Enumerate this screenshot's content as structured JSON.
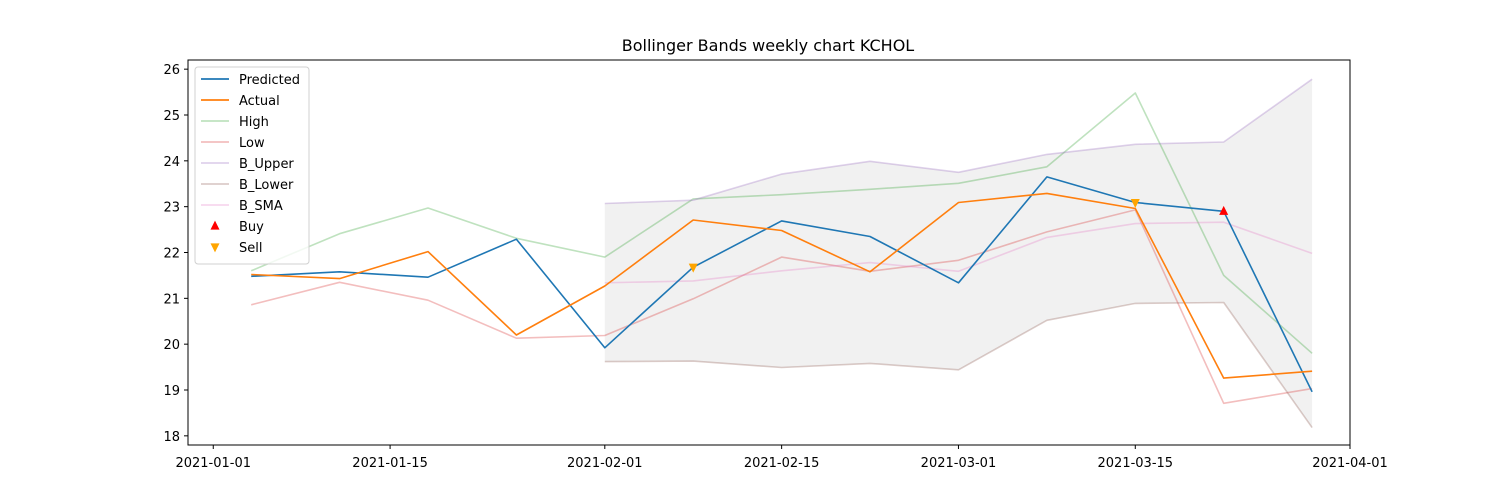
{
  "chart_data": {
    "type": "line",
    "title": "Bollinger Bands weekly chart KCHOL",
    "xlabel": "",
    "ylabel": "",
    "x_is_date": true,
    "xlim": [
      "2020-12-30",
      "2021-04-01"
    ],
    "ylim": [
      17.8,
      26.2
    ],
    "xticks": [
      "2021-01-01",
      "2021-01-15",
      "2021-02-01",
      "2021-02-15",
      "2021-03-01",
      "2021-03-15",
      "2021-04-01"
    ],
    "yticks": [
      18,
      19,
      20,
      21,
      22,
      23,
      24,
      25,
      26
    ],
    "grid": false,
    "legend_position": "top-left",
    "band_fill": {
      "between": [
        "B_Upper",
        "B_Lower"
      ],
      "color": "#cccccc",
      "opacity": 0.28
    },
    "series": [
      {
        "name": "Predicted",
        "color": "#1f77b4",
        "opacity": 1.0,
        "kind": "line",
        "x": [
          "2021-01-04",
          "2021-01-11",
          "2021-01-18",
          "2021-01-25",
          "2021-02-01",
          "2021-02-08",
          "2021-02-15",
          "2021-02-22",
          "2021-03-01",
          "2021-03-08",
          "2021-03-15",
          "2021-03-22",
          "2021-03-29"
        ],
        "values": [
          21.48,
          21.58,
          21.46,
          22.29,
          19.92,
          21.68,
          22.69,
          22.35,
          21.34,
          23.65,
          23.09,
          22.9,
          18.96
        ]
      },
      {
        "name": "Actual",
        "color": "#ff7f0e",
        "opacity": 1.0,
        "kind": "line",
        "x": [
          "2021-01-04",
          "2021-01-11",
          "2021-01-18",
          "2021-01-25",
          "2021-02-01",
          "2021-02-08",
          "2021-02-15",
          "2021-02-22",
          "2021-03-01",
          "2021-03-08",
          "2021-03-15",
          "2021-03-22",
          "2021-03-29"
        ],
        "values": [
          21.52,
          21.43,
          22.02,
          20.2,
          21.27,
          22.71,
          22.48,
          21.58,
          23.09,
          23.29,
          22.96,
          19.26,
          19.41
        ]
      },
      {
        "name": "High",
        "color": "#2ca02c",
        "opacity": 0.3,
        "kind": "line",
        "x": [
          "2021-01-04",
          "2021-01-11",
          "2021-01-18",
          "2021-01-25",
          "2021-02-01",
          "2021-02-08",
          "2021-02-15",
          "2021-02-22",
          "2021-03-01",
          "2021-03-08",
          "2021-03-15",
          "2021-03-22",
          "2021-03-29"
        ],
        "values": [
          21.6,
          22.41,
          22.97,
          22.31,
          21.9,
          23.17,
          23.26,
          23.38,
          23.51,
          23.87,
          25.48,
          21.5,
          19.8
        ]
      },
      {
        "name": "Low",
        "color": "#d62728",
        "opacity": 0.3,
        "kind": "line",
        "x": [
          "2021-01-04",
          "2021-01-11",
          "2021-01-18",
          "2021-01-25",
          "2021-02-01",
          "2021-02-08",
          "2021-02-15",
          "2021-02-22",
          "2021-03-01",
          "2021-03-08",
          "2021-03-15",
          "2021-03-22",
          "2021-03-29"
        ],
        "values": [
          20.86,
          21.35,
          20.96,
          20.13,
          20.19,
          20.99,
          21.9,
          21.59,
          21.83,
          22.45,
          22.93,
          18.71,
          19.03
        ]
      },
      {
        "name": "B_Upper",
        "color": "#9467bd",
        "opacity": 0.3,
        "kind": "line",
        "x": [
          "2021-02-01",
          "2021-02-08",
          "2021-02-15",
          "2021-02-22",
          "2021-03-01",
          "2021-03-08",
          "2021-03-15",
          "2021-03-22",
          "2021-03-29"
        ],
        "values": [
          23.07,
          23.14,
          23.71,
          23.99,
          23.75,
          24.14,
          24.36,
          24.41,
          25.78
        ]
      },
      {
        "name": "B_Lower",
        "color": "#8c564b",
        "opacity": 0.3,
        "kind": "line",
        "x": [
          "2021-02-01",
          "2021-02-08",
          "2021-02-15",
          "2021-02-22",
          "2021-03-01",
          "2021-03-08",
          "2021-03-15",
          "2021-03-22",
          "2021-03-29"
        ],
        "values": [
          19.62,
          19.63,
          19.49,
          19.58,
          19.44,
          20.52,
          20.89,
          20.91,
          18.18
        ]
      },
      {
        "name": "B_SMA",
        "color": "#e377c2",
        "opacity": 0.3,
        "kind": "line",
        "x": [
          "2021-02-01",
          "2021-02-08",
          "2021-02-15",
          "2021-02-22",
          "2021-03-01",
          "2021-03-08",
          "2021-03-15",
          "2021-03-22",
          "2021-03-29"
        ],
        "values": [
          21.34,
          21.38,
          21.6,
          21.78,
          21.59,
          22.33,
          22.63,
          22.66,
          21.98
        ]
      },
      {
        "name": "Buy",
        "color": "#ff0000",
        "opacity": 1.0,
        "kind": "marker",
        "marker": "triangle-up",
        "x": [
          "2021-03-22"
        ],
        "values": [
          22.9
        ]
      },
      {
        "name": "Sell",
        "color": "#ffa500",
        "opacity": 1.0,
        "kind": "marker",
        "marker": "triangle-down",
        "x": [
          "2021-02-08",
          "2021-03-15"
        ],
        "values": [
          21.68,
          23.09
        ]
      }
    ]
  }
}
